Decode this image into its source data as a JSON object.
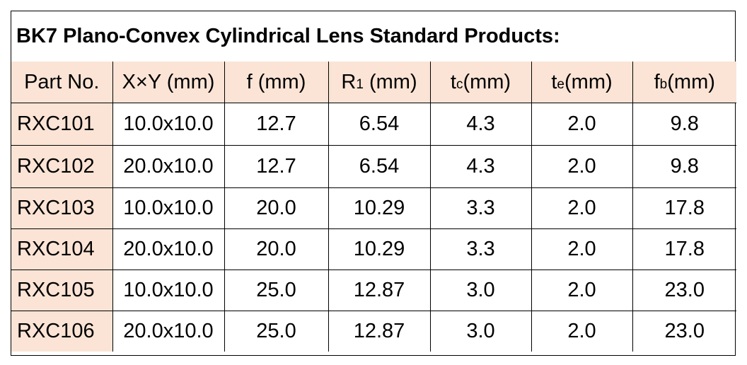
{
  "title": "BK7 Plano-Convex Cylindrical Lens Standard Products:",
  "colors": {
    "header_fill": "#fbe4d5",
    "border": "#000000",
    "text": "#000000"
  },
  "columns": [
    {
      "label": "Part No."
    },
    {
      "label": "X×Y (mm)"
    },
    {
      "label": "f (mm)"
    },
    {
      "label": "R",
      "sub": "1",
      "unit": " (mm)"
    },
    {
      "label": "t",
      "sub": "c",
      "unit": "(mm)"
    },
    {
      "label": "t",
      "sub": "e",
      "unit": "(mm)"
    },
    {
      "label": "f",
      "sub": "b",
      "unit": "(mm)"
    }
  ],
  "rows": [
    {
      "part": "RXC101",
      "xy": "10.0x10.0",
      "f": "12.7",
      "r1": "6.54",
      "tc": "4.3",
      "te": "2.0",
      "fb": "9.8"
    },
    {
      "part": "RXC102",
      "xy": "20.0x10.0",
      "f": "12.7",
      "r1": "6.54",
      "tc": "4.3",
      "te": "2.0",
      "fb": "9.8"
    },
    {
      "part": "RXC103",
      "xy": "10.0x10.0",
      "f": "20.0",
      "r1": "10.29",
      "tc": "3.3",
      "te": "2.0",
      "fb": "17.8"
    },
    {
      "part": "RXC104",
      "xy": "20.0x10.0",
      "f": "20.0",
      "r1": "10.29",
      "tc": "3.3",
      "te": "2.0",
      "fb": "17.8"
    },
    {
      "part": "RXC105",
      "xy": "10.0x10.0",
      "f": "25.0",
      "r1": "12.87",
      "tc": "3.0",
      "te": "2.0",
      "fb": "23.0"
    },
    {
      "part": "RXC106",
      "xy": "20.0x10.0",
      "f": "25.0",
      "r1": "12.87",
      "tc": "3.0",
      "te": "2.0",
      "fb": "23.0"
    }
  ]
}
